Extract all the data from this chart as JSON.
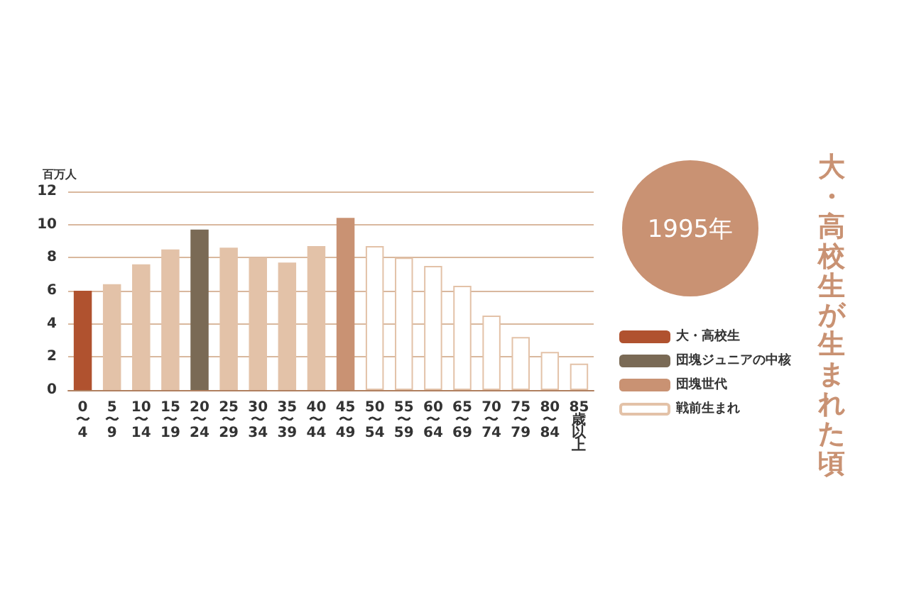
{
  "chart_data": {
    "type": "bar",
    "title": "1995年",
    "subtitle": "大・高校生が生まれた頃",
    "ylabel": "百万人",
    "categories": [
      "0〜4",
      "5〜9",
      "10〜14",
      "15〜19",
      "20〜24",
      "25〜29",
      "30〜34",
      "35〜39",
      "40〜44",
      "45〜49",
      "50〜54",
      "55〜59",
      "60〜64",
      "65〜69",
      "70〜74",
      "75〜79",
      "80〜84",
      "85歳以上"
    ],
    "stacked": true,
    "series": [
      {
        "name": "大・高校生",
        "color": "#b0522f",
        "values": [
          6.0,
          null,
          null,
          null,
          null,
          null,
          null,
          null,
          null,
          null,
          null,
          null,
          null,
          null,
          null,
          null,
          null,
          null
        ]
      },
      {
        "name": "団塊ジュニアの中核",
        "color": "#7a6a55",
        "values": [
          null,
          null,
          null,
          null,
          9.7,
          null,
          null,
          null,
          null,
          null,
          null,
          null,
          null,
          null,
          null,
          null,
          null,
          null
        ]
      },
      {
        "name": "団塊世代",
        "color": "#c99273",
        "values": [
          null,
          null,
          null,
          null,
          null,
          null,
          null,
          null,
          null,
          10.4,
          null,
          null,
          null,
          null,
          null,
          null,
          null,
          null
        ]
      },
      {
        "name": "戦前生まれ",
        "color": "#ffffff",
        "values": [
          null,
          null,
          null,
          null,
          null,
          null,
          null,
          null,
          null,
          null,
          8.7,
          8.0,
          7.5,
          6.3,
          4.5,
          3.2,
          2.3,
          1.6
        ]
      },
      {
        "color": "#e3c2a8",
        "values": [
          null,
          6.4,
          7.6,
          8.5,
          null,
          8.6,
          8.0,
          7.7,
          8.7,
          null,
          null,
          null,
          null,
          null,
          null,
          null,
          null,
          null
        ]
      }
    ],
    "ylim": [
      0,
      12
    ],
    "yticks": [
      0,
      2,
      4,
      6,
      8,
      10,
      12
    ],
    "grid": "y",
    "legend": "right"
  }
}
